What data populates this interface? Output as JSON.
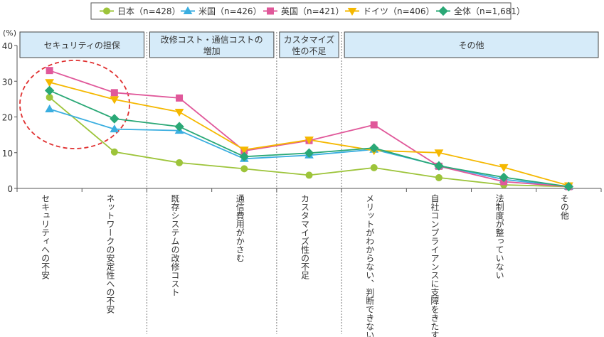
{
  "chart_data": {
    "type": "line",
    "y_unit": "(%)",
    "ylim": [
      0,
      40
    ],
    "yticks": [
      "0",
      "10",
      "20",
      "30",
      "40"
    ],
    "grid": false,
    "legend_position": "top",
    "categories": [
      "セキュリティへの不安",
      "ネットワークの安定性への不安",
      "既存システムの改修コスト",
      "通信費用がかさむ",
      "カスタマイズ性の不足",
      "メリットがわからない、判断できない",
      "自社コンプライアンスに支障をきたす",
      "法制度が整っていない",
      "その他"
    ],
    "groups": [
      {
        "label": "セキュリティの担保",
        "start": 0,
        "end": 1
      },
      {
        "label": "改修コスト・通信コストの増加",
        "start": 2,
        "end": 3
      },
      {
        "label": "カスタマイズ性の不足",
        "start": 4,
        "end": 4
      },
      {
        "label": "その他",
        "start": 5,
        "end": 8
      }
    ],
    "series": [
      {
        "name": "日本（n=428）",
        "color": "#9dc43a",
        "marker": "circle",
        "values": [
          25.5,
          10.2,
          7.2,
          5.5,
          3.7,
          5.8,
          3.0,
          1.0,
          0.5
        ]
      },
      {
        "name": "米国（n=426）",
        "color": "#3aaee0",
        "marker": "triangle-up",
        "values": [
          22.2,
          16.6,
          16.2,
          8.3,
          9.3,
          10.9,
          6.4,
          2.5,
          0.5
        ]
      },
      {
        "name": "英国（n=421）",
        "color": "#e0589a",
        "marker": "square",
        "values": [
          33.0,
          26.8,
          25.3,
          10.5,
          13.4,
          17.8,
          6.2,
          1.9,
          0.5
        ]
      },
      {
        "name": "ドイツ（n=406）",
        "color": "#f5b800",
        "marker": "triangle-down",
        "values": [
          29.7,
          24.9,
          21.4,
          10.8,
          13.6,
          10.6,
          10.0,
          5.9,
          0.8
        ]
      },
      {
        "name": "全体（n=1,681）",
        "color": "#2aa876",
        "marker": "diamond",
        "values": [
          27.4,
          19.5,
          17.3,
          8.9,
          9.9,
          11.3,
          6.3,
          3.1,
          0.5
        ]
      }
    ]
  }
}
